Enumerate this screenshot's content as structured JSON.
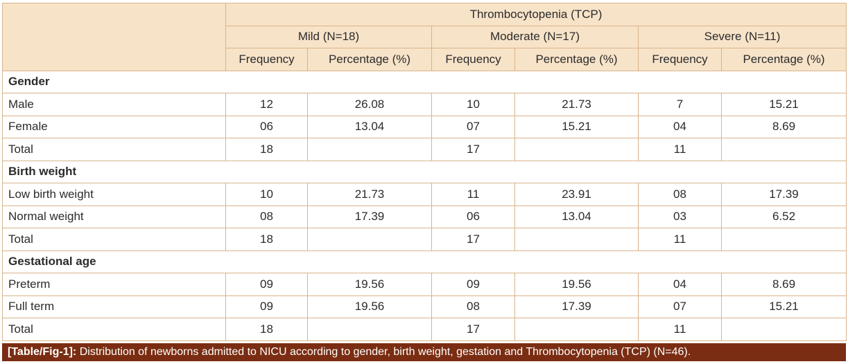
{
  "table": {
    "group_header": "Thrombocytopenia (TCP)",
    "severity_headers": [
      "Mild (N=18)",
      "Moderate (N=17)",
      "Severe (N=11)"
    ],
    "sub_headers": [
      "Frequency",
      "Percentage (%)",
      "Frequency",
      "Percentage (%)",
      "Frequency",
      "Percentage (%)"
    ],
    "sections": [
      {
        "title": "Gender",
        "rows": [
          {
            "label": "Male",
            "cells": [
              "12",
              "26.08",
              "10",
              "21.73",
              "7",
              "15.21"
            ]
          },
          {
            "label": "Female",
            "cells": [
              "06",
              "13.04",
              "07",
              "15.21",
              "04",
              "8.69"
            ]
          },
          {
            "label": "Total",
            "cells": [
              "18",
              "",
              "17",
              "",
              "11",
              ""
            ]
          }
        ]
      },
      {
        "title": "Birth weight",
        "rows": [
          {
            "label": "Low birth weight",
            "cells": [
              "10",
              "21.73",
              "11",
              "23.91",
              "08",
              "17.39"
            ]
          },
          {
            "label": "Normal weight",
            "cells": [
              "08",
              "17.39",
              "06",
              "13.04",
              "03",
              "6.52"
            ]
          },
          {
            "label": "Total",
            "cells": [
              "18",
              "",
              "17",
              "",
              "11",
              ""
            ]
          }
        ]
      },
      {
        "title": "Gestational age",
        "rows": [
          {
            "label": "Preterm",
            "cells": [
              "09",
              "19.56",
              "09",
              "19.56",
              "04",
              "8.69"
            ]
          },
          {
            "label": "Full term",
            "cells": [
              "09",
              "19.56",
              "08",
              "17.39",
              "07",
              "15.21"
            ]
          },
          {
            "label": "Total",
            "cells": [
              "18",
              "",
              "17",
              "",
              "11",
              ""
            ]
          }
        ]
      }
    ]
  },
  "caption": {
    "tag": "[Table/Fig-1]:",
    "text": "Distribution of newborns admitted to NICU according to gender, birth weight, gestation and Thrombocytopenia (TCP) (N=46)."
  },
  "colors": {
    "header_bg": "#f7e3c8",
    "border": "#d9b38a",
    "caption_bg": "#7a2d12",
    "caption_text": "#ffffff"
  }
}
